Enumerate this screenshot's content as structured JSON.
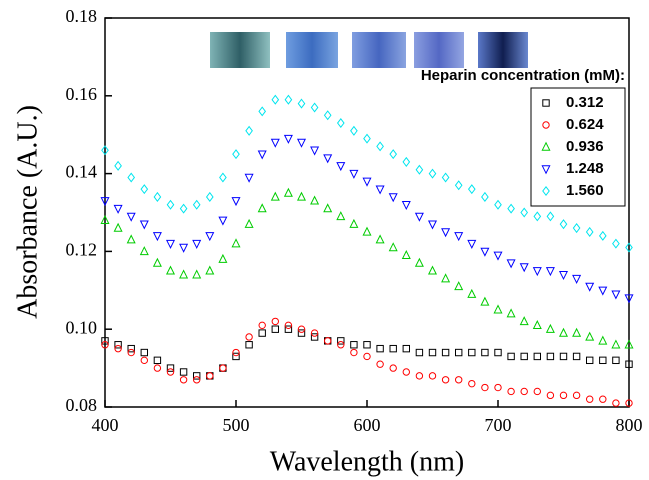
{
  "chart_data": {
    "type": "scatter",
    "xlabel": "Wavelength (nm)",
    "ylabel": "Absorbance (A.U.)",
    "legend_title": "Heparin concentration (mM):",
    "legend_position": "upper right",
    "xlim": [
      400,
      800
    ],
    "xticks": [
      400,
      500,
      600,
      700,
      800
    ],
    "ylim": [
      0.08,
      0.18
    ],
    "yticks": [
      0.08,
      {
        "value": 0.1,
        "label": "0.10"
      },
      0.12,
      0.14,
      0.16,
      0.18
    ],
    "x": [
      400,
      410,
      420,
      430,
      440,
      450,
      460,
      470,
      480,
      490,
      500,
      510,
      520,
      530,
      540,
      550,
      560,
      570,
      580,
      590,
      600,
      610,
      620,
      630,
      640,
      650,
      660,
      670,
      680,
      690,
      700,
      710,
      720,
      730,
      740,
      750,
      760,
      770,
      780,
      790,
      800
    ],
    "series": [
      {
        "name": "0.312",
        "color": "#000000",
        "marker": "square",
        "values": [
          0.097,
          0.096,
          0.095,
          0.094,
          0.092,
          0.09,
          0.089,
          0.088,
          0.088,
          0.09,
          0.093,
          0.096,
          0.099,
          0.1,
          0.1,
          0.099,
          0.098,
          0.097,
          0.097,
          0.096,
          0.096,
          0.095,
          0.095,
          0.095,
          0.094,
          0.094,
          0.094,
          0.094,
          0.094,
          0.094,
          0.094,
          0.093,
          0.093,
          0.093,
          0.093,
          0.093,
          0.093,
          0.092,
          0.092,
          0.092,
          0.091
        ]
      },
      {
        "name": "0.624",
        "color": "#ff0000",
        "marker": "circle",
        "values": [
          0.096,
          0.095,
          0.094,
          0.092,
          0.09,
          0.089,
          0.087,
          0.087,
          0.088,
          0.09,
          0.094,
          0.098,
          0.101,
          0.102,
          0.101,
          0.1,
          0.099,
          0.097,
          0.096,
          0.094,
          0.093,
          0.091,
          0.09,
          0.089,
          0.088,
          0.088,
          0.087,
          0.087,
          0.086,
          0.085,
          0.085,
          0.084,
          0.084,
          0.084,
          0.083,
          0.083,
          0.083,
          0.082,
          0.082,
          0.081,
          0.081
        ]
      },
      {
        "name": "0.936",
        "color": "#00cc00",
        "marker": "triangle-up",
        "values": [
          0.128,
          0.126,
          0.123,
          0.12,
          0.117,
          0.115,
          0.114,
          0.114,
          0.115,
          0.118,
          0.122,
          0.127,
          0.131,
          0.134,
          0.135,
          0.134,
          0.133,
          0.131,
          0.129,
          0.127,
          0.125,
          0.123,
          0.121,
          0.119,
          0.117,
          0.115,
          0.113,
          0.111,
          0.109,
          0.107,
          0.105,
          0.104,
          0.102,
          0.101,
          0.1,
          0.099,
          0.099,
          0.098,
          0.097,
          0.096,
          0.096
        ]
      },
      {
        "name": "1.248",
        "color": "#0000ff",
        "marker": "triangle-down",
        "values": [
          0.133,
          0.131,
          0.129,
          0.127,
          0.124,
          0.122,
          0.121,
          0.122,
          0.124,
          0.128,
          0.133,
          0.139,
          0.145,
          0.148,
          0.149,
          0.148,
          0.146,
          0.144,
          0.142,
          0.14,
          0.138,
          0.136,
          0.134,
          0.132,
          0.129,
          0.127,
          0.125,
          0.124,
          0.122,
          0.12,
          0.119,
          0.117,
          0.116,
          0.115,
          0.115,
          0.114,
          0.113,
          0.111,
          0.11,
          0.109,
          0.108
        ]
      },
      {
        "name": "1.560",
        "color": "#00e5ee",
        "marker": "diamond",
        "values": [
          0.146,
          0.142,
          0.139,
          0.136,
          0.134,
          0.132,
          0.131,
          0.132,
          0.134,
          0.139,
          0.145,
          0.151,
          0.156,
          0.159,
          0.159,
          0.158,
          0.157,
          0.155,
          0.153,
          0.151,
          0.149,
          0.147,
          0.145,
          0.143,
          0.141,
          0.14,
          0.139,
          0.137,
          0.136,
          0.134,
          0.132,
          0.131,
          0.13,
          0.129,
          0.129,
          0.127,
          0.126,
          0.125,
          0.124,
          0.122,
          0.121
        ]
      }
    ]
  }
}
